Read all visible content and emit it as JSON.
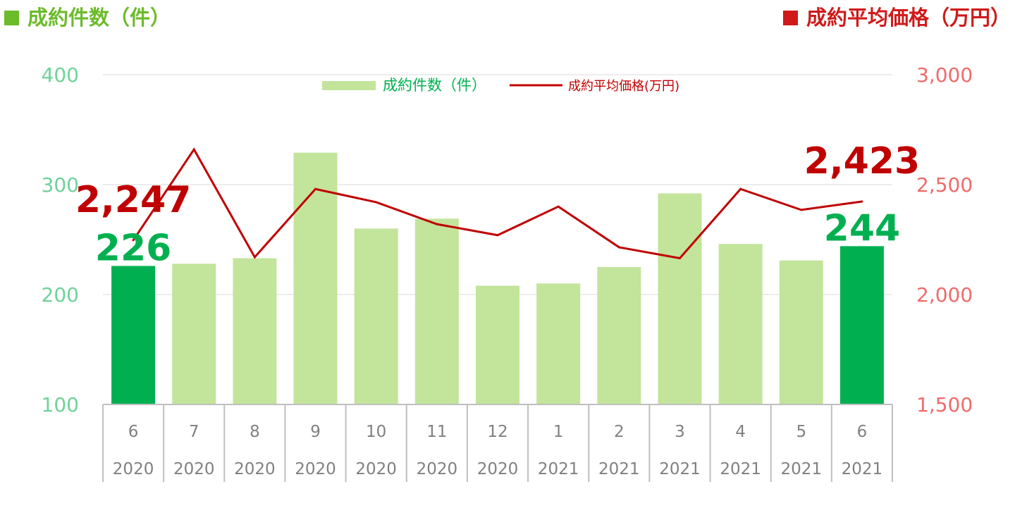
{
  "headers": {
    "left": "成約件数（件）",
    "right": "成約平均価格（万円）"
  },
  "colors": {
    "bar": "#c3e49b",
    "bar_highlight": "#00b050",
    "line": "#c00000",
    "left_axis_text": "#6fd39a",
    "right_axis_text": "#ef6b6b",
    "left_header": "#6cbb2a",
    "right_header": "#d01a1a",
    "bar_label": "#00b050",
    "line_label": "#c00000"
  },
  "chart_data": {
    "type": "bar",
    "categories": [
      [
        "6",
        "2020"
      ],
      [
        "7",
        "2020"
      ],
      [
        "8",
        "2020"
      ],
      [
        "9",
        "2020"
      ],
      [
        "10",
        "2020"
      ],
      [
        "11",
        "2020"
      ],
      [
        "12",
        "2020"
      ],
      [
        "1",
        "2021"
      ],
      [
        "2",
        "2021"
      ],
      [
        "3",
        "2021"
      ],
      [
        "4",
        "2021"
      ],
      [
        "5",
        "2021"
      ],
      [
        "6",
        "2021"
      ]
    ],
    "series": [
      {
        "name": "成約件数（件）",
        "type": "bar",
        "axis": "left",
        "values": [
          226,
          228,
          233,
          329,
          260,
          269,
          208,
          210,
          225,
          292,
          246,
          231,
          244
        ],
        "highlight_indices": [
          0,
          12
        ]
      },
      {
        "name": "成約平均価格(万円)",
        "type": "line",
        "axis": "right",
        "values": [
          2247,
          2660,
          2170,
          2480,
          2420,
          2320,
          2270,
          2400,
          2215,
          2165,
          2480,
          2385,
          2423
        ]
      }
    ],
    "left_axis": {
      "ylim": [
        100,
        400
      ],
      "ticks": [
        "100",
        "200",
        "300",
        "400"
      ]
    },
    "right_axis": {
      "ylim": [
        1500,
        3000
      ],
      "ticks": [
        "1,500",
        "2,000",
        "2,500",
        "3,000"
      ]
    },
    "data_labels": [
      {
        "series": 0,
        "index": 0,
        "text": "226"
      },
      {
        "series": 0,
        "index": 12,
        "text": "244"
      },
      {
        "series": 1,
        "index": 0,
        "text": "2,247"
      },
      {
        "series": 1,
        "index": 12,
        "text": "2,423"
      }
    ],
    "legend": {
      "position": "top-center"
    },
    "grid": true
  }
}
